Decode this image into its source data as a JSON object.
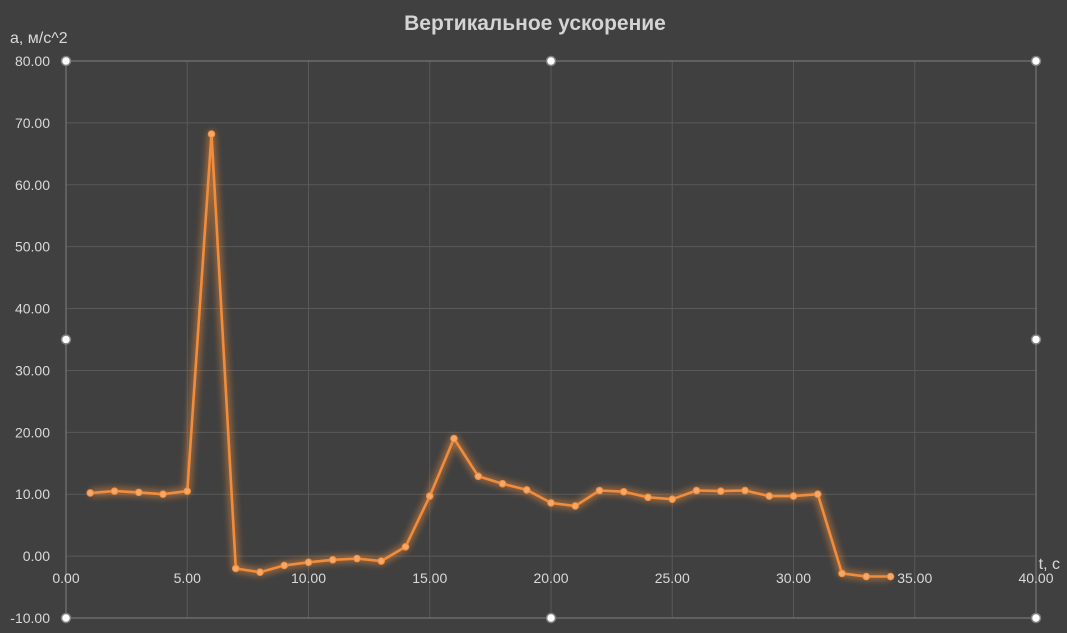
{
  "chart_data": {
    "type": "scatter",
    "title": "Вертикальное ускорение",
    "xlabel": "t, с",
    "ylabel": "a, м/с^2",
    "xlim": [
      0,
      40
    ],
    "ylim": [
      -10,
      80
    ],
    "x_ticks": [
      0,
      5,
      10,
      15,
      20,
      25,
      30,
      35,
      40
    ],
    "y_ticks": [
      -10,
      0,
      10,
      20,
      30,
      40,
      50,
      60,
      70,
      80
    ],
    "x_tick_labels": [
      "0.00",
      "5.00",
      "10.00",
      "15.00",
      "20.00",
      "25.00",
      "30.00",
      "35.00",
      "40.00"
    ],
    "y_tick_labels": [
      "-10.00",
      "0.00",
      "10.00",
      "20.00",
      "30.00",
      "40.00",
      "50.00",
      "60.00",
      "70.00",
      "80.00"
    ],
    "grid": true,
    "legend": "none",
    "style": "scatter with straight lines and markers",
    "series": [
      {
        "color": "#f08c3c",
        "points": [
          [
            1,
            10.2
          ],
          [
            2,
            10.5
          ],
          [
            3,
            10.3
          ],
          [
            4,
            10.0
          ],
          [
            5,
            10.5
          ],
          [
            6,
            68.2
          ],
          [
            7,
            -2.0
          ],
          [
            8,
            -2.6
          ],
          [
            9,
            -1.5
          ],
          [
            10,
            -1.0
          ],
          [
            11,
            -0.6
          ],
          [
            12,
            -0.4
          ],
          [
            13,
            -0.8
          ],
          [
            14,
            1.5
          ],
          [
            15,
            9.7
          ],
          [
            16,
            19.0
          ],
          [
            17,
            12.9
          ],
          [
            18,
            11.7
          ],
          [
            19,
            10.7
          ],
          [
            20,
            8.6
          ],
          [
            21,
            8.1
          ],
          [
            22,
            10.6
          ],
          [
            23,
            10.4
          ],
          [
            24,
            9.5
          ],
          [
            25,
            9.2
          ],
          [
            26,
            10.6
          ],
          [
            27,
            10.5
          ],
          [
            28,
            10.6
          ],
          [
            29,
            9.7
          ],
          [
            30,
            9.7
          ],
          [
            31,
            10.0
          ],
          [
            32,
            -2.8
          ],
          [
            33,
            -3.3
          ],
          [
            34,
            -3.3
          ]
        ]
      }
    ]
  }
}
